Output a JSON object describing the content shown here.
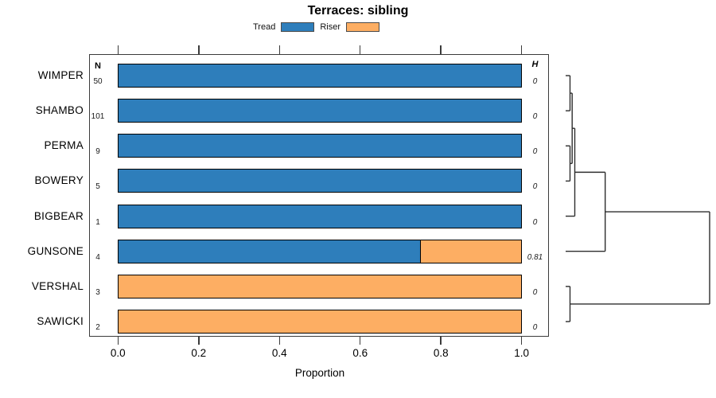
{
  "title": "Terraces: sibling",
  "legend": {
    "items": [
      {
        "label": "Tread",
        "color": "#2e7ebb"
      },
      {
        "label": "Riser",
        "color": "#fdae63"
      }
    ]
  },
  "columns": {
    "n_header": "N",
    "h_header": "H"
  },
  "x_axis": {
    "label": "Proportion",
    "tick_labels": [
      "0.0",
      "0.2",
      "0.4",
      "0.6",
      "0.8",
      "1.0"
    ],
    "tick_values": [
      0,
      0.2,
      0.4,
      0.6,
      0.8,
      1.0
    ]
  },
  "chart_data": {
    "type": "bar",
    "orientation": "horizontal",
    "stacked": true,
    "grid": false,
    "legend_position": "top",
    "title": "Terraces: sibling",
    "xlabel": "Proportion",
    "xlim": [
      0,
      1
    ],
    "categories": [
      "WIMPER",
      "SHAMBO",
      "PERMA",
      "BOWERY",
      "BIGBEAR",
      "GUNSONE",
      "VERSHAL",
      "SAWICKI"
    ],
    "series": [
      {
        "name": "Tread",
        "color": "#2e7ebb",
        "values": [
          1,
          1,
          1,
          1,
          1,
          0.75,
          0,
          0
        ]
      },
      {
        "name": "Riser",
        "color": "#fdae63",
        "values": [
          0,
          0,
          0,
          0,
          0,
          0.25,
          1,
          1
        ]
      }
    ],
    "sample_sizes_N": [
      50,
      101,
      9,
      5,
      1,
      4,
      3,
      2
    ],
    "entropy_H": [
      "0",
      "0",
      "0",
      "0",
      "0",
      "0.81",
      "0",
      "0"
    ],
    "dendrogram": {
      "side": "right",
      "leaf_tick_start_x": 711,
      "merges": [
        {
          "id": "A",
          "children": [
            "WIMPER",
            "SHAMBO"
          ],
          "x": 716.5
        },
        {
          "id": "B",
          "children": [
            "PERMA",
            "BOWERY"
          ],
          "x": 716.5
        },
        {
          "id": "C",
          "children": [
            "A",
            "B"
          ],
          "x": 719.2
        },
        {
          "id": "D",
          "children": [
            "C",
            "BIGBEAR"
          ],
          "x": 722.5
        },
        {
          "id": "E",
          "children": [
            "D",
            "GUNSONE"
          ],
          "x": 760.7
        },
        {
          "id": "F",
          "children": [
            "VERSHAL",
            "SAWICKI"
          ],
          "x": 716.5
        },
        {
          "id": "G",
          "children": [
            "E",
            "F"
          ],
          "x": 892
        }
      ]
    }
  }
}
